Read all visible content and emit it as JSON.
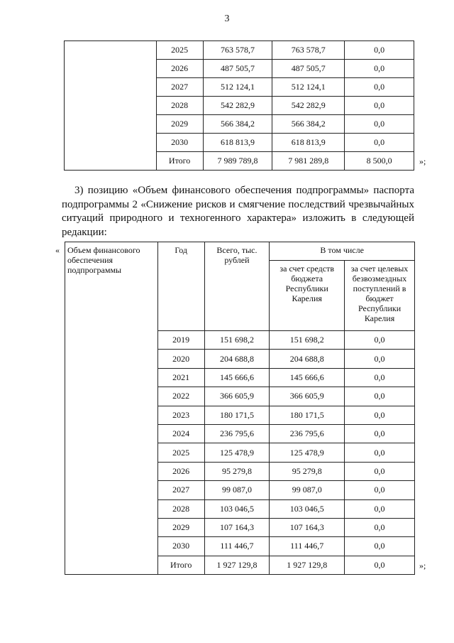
{
  "page_number": "3",
  "table1": {
    "rows": [
      [
        "2025",
        "763 578,7",
        "763 578,7",
        "0,0"
      ],
      [
        "2026",
        "487 505,7",
        "487 505,7",
        "0,0"
      ],
      [
        "2027",
        "512 124,1",
        "512 124,1",
        "0,0"
      ],
      [
        "2028",
        "542 282,9",
        "542 282,9",
        "0,0"
      ],
      [
        "2029",
        "566 384,2",
        "566 384,2",
        "0,0"
      ],
      [
        "2030",
        "618 813,9",
        "618 813,9",
        "0,0"
      ],
      [
        "Итого",
        "7 989 789,8",
        "7 981 289,8",
        "8 500,0"
      ]
    ],
    "closing": "»;"
  },
  "paragraph": "3) позицию «Объем финансового обеспечения подпрограммы» паспорта подпрограммы 2 «Снижение рисков и смягчение последствий чрезвычайных ситуаций природного и техногенного характера» изложить в следующей редакции:",
  "table2": {
    "opening": "«",
    "label": "Объем финансового обеспечения подпрограммы",
    "headers": {
      "year": "Год",
      "total": "Всего, тыс. рублей",
      "including": "В том числе",
      "budget": "за счет средств бюджета Республики Карелия",
      "targeted": "за счет целевых безвозмездных поступлений в бюджет Республики Карелия"
    },
    "rows": [
      [
        "2019",
        "151 698,2",
        "151 698,2",
        "0,0"
      ],
      [
        "2020",
        "204 688,8",
        "204 688,8",
        "0,0"
      ],
      [
        "2021",
        "145 666,6",
        "145 666,6",
        "0,0"
      ],
      [
        "2022",
        "366 605,9",
        "366 605,9",
        "0,0"
      ],
      [
        "2023",
        "180 171,5",
        "180 171,5",
        "0,0"
      ],
      [
        "2024",
        "236 795,6",
        "236 795,6",
        "0,0"
      ],
      [
        "2025",
        "125 478,9",
        "125 478,9",
        "0,0"
      ],
      [
        "2026",
        "95 279,8",
        "95 279,8",
        "0,0"
      ],
      [
        "2027",
        "99 087,0",
        "99 087,0",
        "0,0"
      ],
      [
        "2028",
        "103 046,5",
        "103 046,5",
        "0,0"
      ],
      [
        "2029",
        "107 164,3",
        "107 164,3",
        "0,0"
      ],
      [
        "2030",
        "111 446,7",
        "111 446,7",
        "0,0"
      ],
      [
        "Итого",
        "1 927 129,8",
        "1 927 129,8",
        "0,0"
      ]
    ],
    "closing": "»;"
  }
}
